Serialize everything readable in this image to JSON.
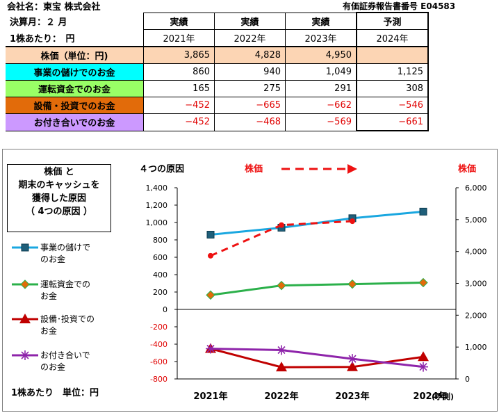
{
  "header": {
    "company": "会社名：東宝 株式会社",
    "report_no": "有価証券報告書番号 E04583",
    "fiscal_month": "決算月：２ 月",
    "per_share": "1株あたり：　円"
  },
  "table": {
    "columns": [
      {
        "status": "実績",
        "year": "2021年"
      },
      {
        "status": "実績",
        "year": "2022年"
      },
      {
        "status": "実績",
        "year": "2023年"
      },
      {
        "status": "予測",
        "year": "2024年"
      }
    ],
    "rows": [
      {
        "label": "株価（単位：円)",
        "bg": "#fcd5b4",
        "values": [
          "3,865",
          "4,828",
          "4,950",
          ""
        ]
      },
      {
        "label": "事業の儲けでのお金",
        "bg": "#00ffff",
        "values": [
          "860",
          "940",
          "1,049",
          "1,125"
        ]
      },
      {
        "label": "運転資金でのお金",
        "bg": "#99ff66",
        "values": [
          "165",
          "275",
          "291",
          "308"
        ]
      },
      {
        "label": "設備・投資でのお金",
        "bg": "#e26b0a",
        "values": [
          "−452",
          "−665",
          "−662",
          "−546"
        ]
      },
      {
        "label": "お付き合いでのお金",
        "bg": "#cc99ff",
        "values": [
          "−452",
          "−468",
          "−569",
          "−661"
        ]
      }
    ]
  },
  "legend_title": [
    "株価 と",
    "期末のキャッシュを",
    "獲得した原因",
    "（ 4つの原因 ）"
  ],
  "unit_note": "1株あたり　単位：円",
  "chart_data": {
    "type": "line",
    "categories": [
      "2021年",
      "2022年",
      "2023年",
      "2024年"
    ],
    "category_suffix": "(予測)",
    "left_axis": {
      "title": "４つの原因",
      "min": -800,
      "max": 1400,
      "step": 200,
      "ticks": [
        "1,400",
        "1,200",
        "1,000",
        "800",
        "600",
        "400",
        "200",
        "0",
        "-200",
        "-400",
        "-600",
        "-800"
      ]
    },
    "right_axis": {
      "title": "株価",
      "min": 0,
      "max": 6000,
      "step": 1000,
      "ticks": [
        "6,000",
        "5,000",
        "4,000",
        "3,000",
        "2,000",
        "1,000",
        "0"
      ]
    },
    "price_legend": "株価",
    "series": [
      {
        "name": "事業の儲けでのお金",
        "axis": "left",
        "color": "#1aa7e0",
        "marker": "square",
        "values": [
          860,
          940,
          1049,
          1125
        ]
      },
      {
        "name": "運転資金でのお金",
        "axis": "left",
        "color": "#2bb04a",
        "marker": "diamond",
        "values": [
          165,
          275,
          291,
          308
        ]
      },
      {
        "name": "設備・投資でのお金",
        "axis": "left",
        "color": "#c00000",
        "marker": "triangle",
        "values": [
          -452,
          -665,
          -662,
          -546
        ]
      },
      {
        "name": "お付き合いでのお金",
        "axis": "left",
        "color": "#8e24aa",
        "marker": "star",
        "values": [
          -452,
          -468,
          -569,
          -661
        ]
      },
      {
        "name": "株価",
        "axis": "right",
        "color": "#ee1111",
        "marker": "circle",
        "dashed": true,
        "values": [
          3865,
          4828,
          4950,
          null
        ]
      }
    ]
  },
  "legend_items": [
    {
      "lines": [
        "事業の儲けで",
        "のお金"
      ]
    },
    {
      "lines": [
        "運転資金での",
        "お金"
      ]
    },
    {
      "lines": [
        "設備･投資での",
        "お金"
      ]
    },
    {
      "lines": [
        "お付き合いで",
        "のお金"
      ]
    }
  ]
}
